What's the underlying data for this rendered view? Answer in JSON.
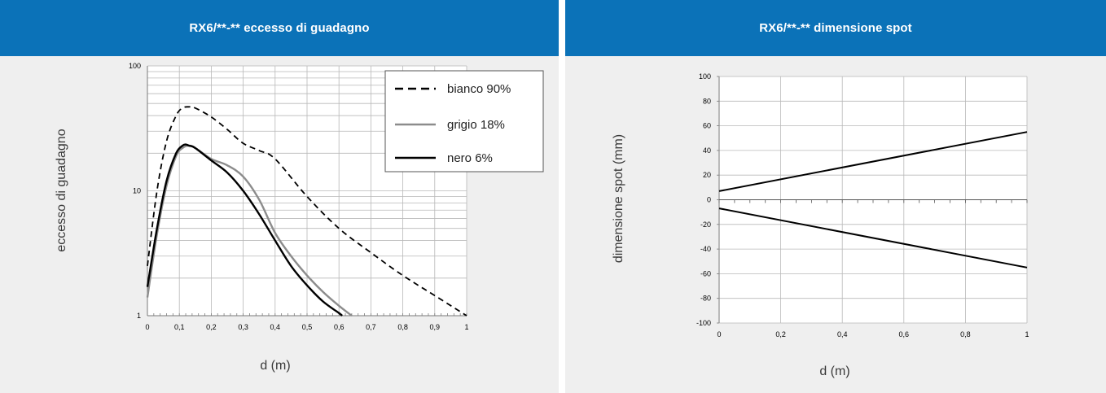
{
  "colors": {
    "header_bg": "#0b72b8",
    "panel_bg": "#efefef",
    "series_bianco": "#000000",
    "series_grigio": "#8c8c8c",
    "series_nero": "#000000"
  },
  "chart_data": [
    {
      "type": "line",
      "title": "RX6/**-** eccesso di guadagno",
      "xlabel": "d (m)",
      "ylabel": "eccesso di guadagno",
      "yscale": "log",
      "xlim": [
        0,
        1
      ],
      "ylim": [
        1,
        100
      ],
      "x_ticks": [
        "0",
        "0,1",
        "0,2",
        "0,3",
        "0,4",
        "0,5",
        "0,6",
        "0,7",
        "0,8",
        "0,9",
        "1"
      ],
      "y_ticks": [
        "1",
        "10",
        "100"
      ],
      "grid": true,
      "legend_position": "top-right",
      "series": [
        {
          "name": "bianco 90%",
          "style": "dashed",
          "x": [
            0.0,
            0.03,
            0.06,
            0.09,
            0.11,
            0.13,
            0.15,
            0.2,
            0.25,
            0.3,
            0.35,
            0.4,
            0.5,
            0.6,
            0.7,
            0.8,
            0.9,
            1.0
          ],
          "y": [
            2.5,
            10,
            25,
            40,
            46,
            47,
            46,
            39,
            31,
            24,
            21,
            18,
            9,
            5,
            3.2,
            2.1,
            1.45,
            1.0
          ]
        },
        {
          "name": "grigio 18%",
          "style": "solid",
          "x": [
            0.0,
            0.03,
            0.06,
            0.09,
            0.11,
            0.13,
            0.15,
            0.2,
            0.25,
            0.3,
            0.35,
            0.4,
            0.45,
            0.5,
            0.55,
            0.6,
            0.64
          ],
          "y": [
            1.4,
            4.5,
            11,
            19,
            22,
            23,
            22,
            18,
            16,
            13,
            8.5,
            4.6,
            3.0,
            2.1,
            1.55,
            1.2,
            1.0
          ]
        },
        {
          "name": "nero 6%",
          "style": "solid",
          "x": [
            0.0,
            0.03,
            0.06,
            0.09,
            0.11,
            0.12,
            0.13,
            0.15,
            0.2,
            0.25,
            0.3,
            0.35,
            0.4,
            0.45,
            0.5,
            0.55,
            0.6,
            0.61
          ],
          "y": [
            1.7,
            5,
            12,
            20,
            23,
            23.5,
            23,
            22,
            17.5,
            14,
            10,
            6.5,
            4.0,
            2.5,
            1.75,
            1.3,
            1.05,
            1.0
          ]
        }
      ]
    },
    {
      "type": "line",
      "title": "RX6/**-** dimensione spot",
      "xlabel": "d (m)",
      "ylabel": "dimensione spot (mm)",
      "xlim": [
        0,
        1
      ],
      "ylim": [
        -100,
        100
      ],
      "x_ticks": [
        "0",
        "0,2",
        "0,4",
        "0,6",
        "0,8",
        "1"
      ],
      "y_ticks": [
        "100",
        "80",
        "60",
        "40",
        "20",
        "0",
        "-20",
        "-40",
        "-60",
        "-80",
        "-100"
      ],
      "grid": true,
      "series": [
        {
          "x": [
            0,
            1
          ],
          "y": [
            7,
            55
          ]
        },
        {
          "x": [
            0,
            1
          ],
          "y": [
            -7,
            -55
          ]
        }
      ]
    }
  ]
}
